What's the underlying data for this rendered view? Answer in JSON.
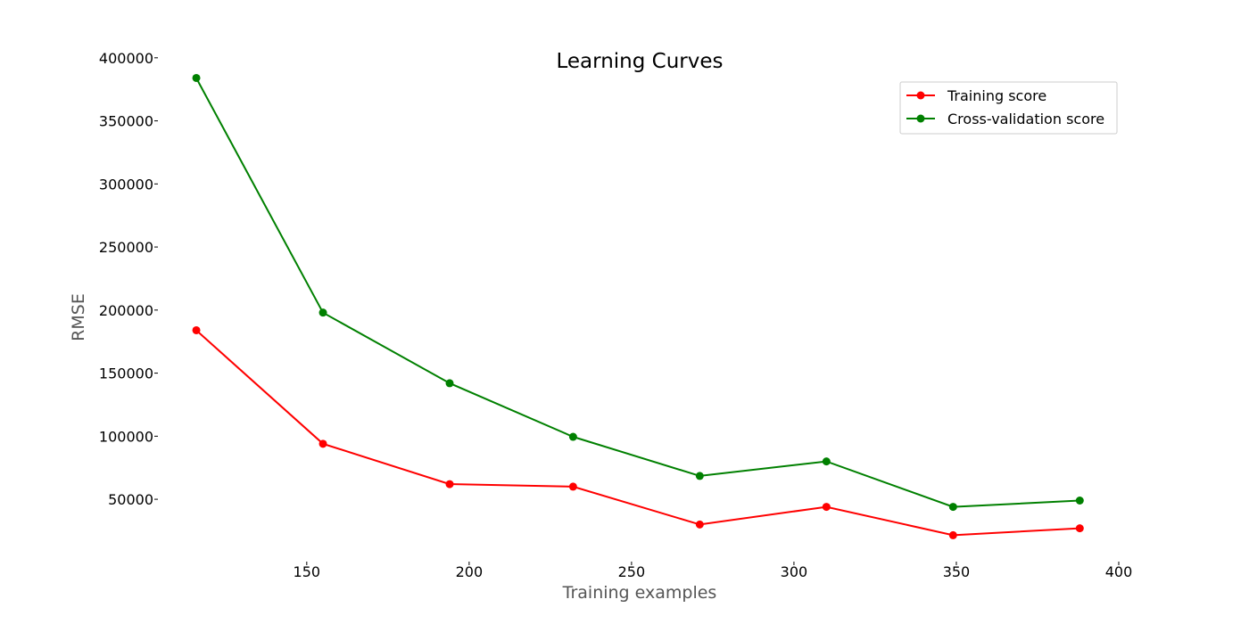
{
  "chart_data": {
    "type": "line",
    "title": "Learning Curves",
    "xlabel": "Training examples",
    "ylabel": "RMSE",
    "xlim": [
      105,
      400
    ],
    "ylim": [
      2000,
      402000
    ],
    "xticks": [
      150,
      200,
      250,
      300,
      350,
      400
    ],
    "yticks": [
      50000,
      100000,
      150000,
      200000,
      250000,
      300000,
      350000,
      400000
    ],
    "grid": false,
    "legend_position": "top-right",
    "x": [
      116,
      155,
      194,
      232,
      271,
      310,
      349,
      388
    ],
    "series": [
      {
        "name": "Training score",
        "color": "#ff0000",
        "marker": "circle",
        "values": [
          184000,
          94000,
          62000,
          60000,
          30000,
          44000,
          21500,
          27000
        ]
      },
      {
        "name": "Cross-validation score",
        "color": "#008000",
        "marker": "circle",
        "values": [
          384000,
          198000,
          142000,
          99500,
          68500,
          80000,
          44000,
          49000
        ]
      }
    ]
  }
}
